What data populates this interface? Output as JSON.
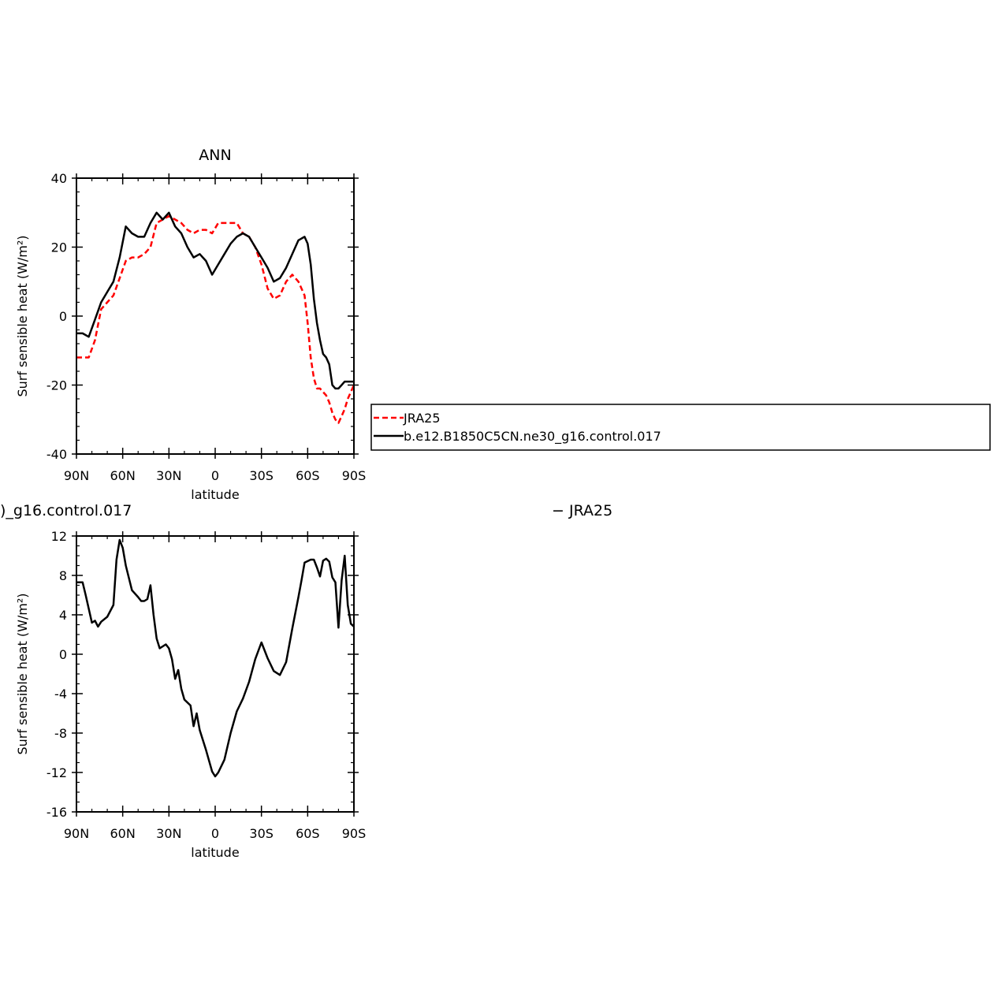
{
  "chart_data": [
    {
      "type": "line",
      "title": "ANN",
      "xlabel": "latitude",
      "ylabel": "Surf sensible heat (W/m²)",
      "xlim": [
        90,
        -90
      ],
      "ylim": [
        -40,
        40
      ],
      "xticks": [
        {
          "value": 90,
          "label": "90N"
        },
        {
          "value": 60,
          "label": "60N"
        },
        {
          "value": 30,
          "label": "30N"
        },
        {
          "value": 0,
          "label": "0"
        },
        {
          "value": -30,
          "label": "30S"
        },
        {
          "value": -60,
          "label": "60S"
        },
        {
          "value": -90,
          "label": "90S"
        }
      ],
      "yticks": [
        {
          "value": 40,
          "label": "40"
        },
        {
          "value": 20,
          "label": "20"
        },
        {
          "value": 0,
          "label": "0"
        },
        {
          "value": -20,
          "label": "-20"
        },
        {
          "value": -40,
          "label": "-40"
        }
      ],
      "legend": {
        "placement": "right",
        "entries": [
          "JRA25",
          "b.e12.B1850C5CN.ne30_g16.control.017"
        ]
      },
      "series": [
        {
          "name": "JRA25",
          "color": "#ff0000",
          "style": "dashed",
          "x": [
            90,
            86,
            82,
            78,
            74,
            70,
            66,
            62,
            58,
            54,
            50,
            46,
            42,
            38,
            34,
            30,
            26,
            22,
            18,
            14,
            10,
            6,
            2,
            -2,
            -6,
            -10,
            -14,
            -18,
            -22,
            -26,
            -30,
            -34,
            -38,
            -42,
            -46,
            -50,
            -54,
            -58,
            -60,
            -62,
            -64,
            -66,
            -68,
            -70,
            -72,
            -74,
            -76,
            -78,
            -80,
            -82,
            -84,
            -86,
            -88,
            -90
          ],
          "values": [
            -12,
            -12,
            -12,
            -7,
            2,
            4,
            6,
            11,
            16,
            17,
            17,
            18,
            20,
            27,
            28,
            29,
            28,
            27,
            25,
            24,
            25,
            25,
            24,
            27,
            27,
            27,
            27,
            24,
            23,
            20,
            15,
            8,
            5,
            6,
            10,
            12,
            10,
            6,
            -2,
            -12,
            -18,
            -21,
            -21,
            -22,
            -23,
            -25,
            -28,
            -30,
            -31,
            -29,
            -27,
            -24,
            -22,
            -20
          ]
        },
        {
          "name": "b.e12.B1850C5CN.ne30_g16.control.017",
          "color": "#000000",
          "style": "solid",
          "x": [
            90,
            86,
            82,
            78,
            74,
            70,
            66,
            62,
            58,
            54,
            50,
            46,
            42,
            38,
            34,
            30,
            26,
            22,
            18,
            14,
            10,
            6,
            2,
            -2,
            -6,
            -10,
            -14,
            -18,
            -22,
            -26,
            -30,
            -34,
            -38,
            -42,
            -46,
            -50,
            -54,
            -58,
            -60,
            -62,
            -64,
            -66,
            -68,
            -70,
            -72,
            -74,
            -76,
            -78,
            -80,
            -82,
            -84,
            -86,
            -88,
            -90
          ],
          "values": [
            -5,
            -5,
            -6,
            -1,
            4,
            7,
            10,
            17,
            26,
            24,
            23,
            23,
            27,
            30,
            28,
            30,
            26,
            24,
            20,
            17,
            18,
            16,
            12,
            15,
            18,
            21,
            23,
            24,
            23,
            20,
            17,
            14,
            10,
            11,
            14,
            18,
            22,
            23,
            21,
            15,
            5,
            -2,
            -7,
            -11,
            -12,
            -14,
            -20,
            -21,
            -21,
            -20,
            -19,
            -19,
            -19,
            -19
          ]
        }
      ]
    },
    {
      "type": "line",
      "title": ")_g16.control.017",
      "title_right": "− JRA25",
      "xlabel": "latitude",
      "ylabel": "Surf sensible heat (W/m²)",
      "xlim": [
        90,
        -90
      ],
      "ylim": [
        -16,
        12
      ],
      "xticks": [
        {
          "value": 90,
          "label": "90N"
        },
        {
          "value": 60,
          "label": "60N"
        },
        {
          "value": 30,
          "label": "30N"
        },
        {
          "value": 0,
          "label": "0"
        },
        {
          "value": -30,
          "label": "30S"
        },
        {
          "value": -60,
          "label": "60S"
        },
        {
          "value": -90,
          "label": "90S"
        }
      ],
      "yticks": [
        {
          "value": 12,
          "label": "12"
        },
        {
          "value": 8,
          "label": "8"
        },
        {
          "value": 4,
          "label": "4"
        },
        {
          "value": 0,
          "label": "0"
        },
        {
          "value": -4,
          "label": "-4"
        },
        {
          "value": -8,
          "label": "-8"
        },
        {
          "value": -12,
          "label": "-12"
        },
        {
          "value": -16,
          "label": "-16"
        }
      ],
      "series": [
        {
          "color": "#000000",
          "style": "solid",
          "x": [
            90,
            86,
            84,
            80,
            78,
            76,
            74,
            70,
            66,
            64,
            62,
            60,
            58,
            54,
            50,
            48,
            46,
            44,
            42,
            40,
            38,
            36,
            32,
            30,
            28,
            26,
            24,
            22,
            20,
            16,
            14,
            12,
            10,
            6,
            2,
            0,
            -2,
            -6,
            -10,
            -14,
            -18,
            -22,
            -26,
            -30,
            -34,
            -38,
            -42,
            -46,
            -50,
            -54,
            -56,
            -58,
            -62,
            -64,
            -66,
            -68,
            -70,
            -72,
            -74,
            -76,
            -78,
            -80,
            -82,
            -84,
            -86,
            -88,
            -90
          ],
          "values": [
            7.3,
            7.3,
            6,
            3.2,
            3.4,
            2.8,
            3.3,
            3.8,
            5,
            9.6,
            11.6,
            10.8,
            9,
            6.5,
            5.8,
            5.4,
            5.4,
            5.6,
            7,
            4,
            1.6,
            0.6,
            1,
            0.6,
            -0.5,
            -2.5,
            -1.6,
            -3.5,
            -4.6,
            -5.2,
            -7.3,
            -6,
            -7.7,
            -9.7,
            -11.9,
            -12.4,
            -12,
            -10.7,
            -8,
            -5.8,
            -4.5,
            -2.8,
            -0.5,
            1.2,
            -0.4,
            -1.7,
            -2.1,
            -0.8,
            2.6,
            5.8,
            7.5,
            9.3,
            9.6,
            9.6,
            8.8,
            7.9,
            9.5,
            9.7,
            9.4,
            7.8,
            7.3,
            2.7,
            7.5,
            10,
            5,
            3.1,
            2.8
          ]
        }
      ]
    }
  ]
}
